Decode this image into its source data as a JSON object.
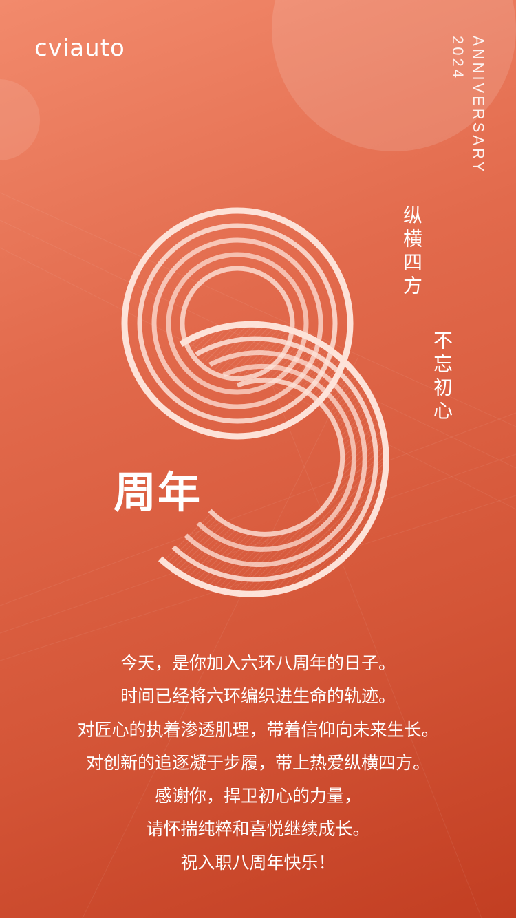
{
  "brand": {
    "logo_text": "cviauto"
  },
  "side_text": {
    "word": "ANNIVERSARY",
    "year": "2024"
  },
  "phrases": [
    "纵横四方",
    "不忘初心"
  ],
  "hero": {
    "number_shape": "nine-rings-icon",
    "label": "周年"
  },
  "message": {
    "lines": [
      "今天，是你加入六环八周年的日子。",
      "时间已经将六环编织进生命的轨迹。",
      "对匠心的执着渗透肌理，带着信仰向未来生长。",
      "对创新的追逐凝于步履，带上热爱纵横四方。",
      "感谢你，捍卫初心的力量，",
      "请怀揣纯粹和喜悦继续成长。",
      "祝入职八周年快乐！"
    ]
  },
  "colors": {
    "background_top": "#f28a6c",
    "background_bottom": "#c23e22",
    "ring": "#fde2d8",
    "text": "#ffffff"
  }
}
